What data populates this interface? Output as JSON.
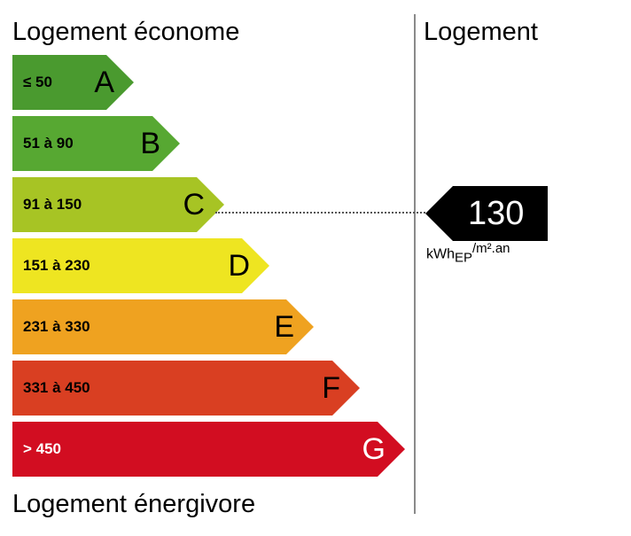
{
  "titles": {
    "top": "Logement économe",
    "bottom": "Logement énergivore",
    "right": "Logement"
  },
  "bands": [
    {
      "letter": "A",
      "range": "≤ 50",
      "color": "#4a9a2f"
    },
    {
      "letter": "B",
      "range": "51 à 90",
      "color": "#57a832"
    },
    {
      "letter": "C",
      "range": "91 à 150",
      "color": "#a7c424"
    },
    {
      "letter": "D",
      "range": "151 à 230",
      "color": "#eee521"
    },
    {
      "letter": "E",
      "range": "231 à 330",
      "color": "#efa220"
    },
    {
      "letter": "F",
      "range": "331 à 450",
      "color": "#d93f22"
    },
    {
      "letter": "G",
      "range": "> 450",
      "color": "#d20d21"
    }
  ],
  "indicator": {
    "value": "130",
    "band": "C",
    "unit_prefix": "kWh",
    "unit_sub": "EP",
    "unit_suffix": "/m².an"
  }
}
